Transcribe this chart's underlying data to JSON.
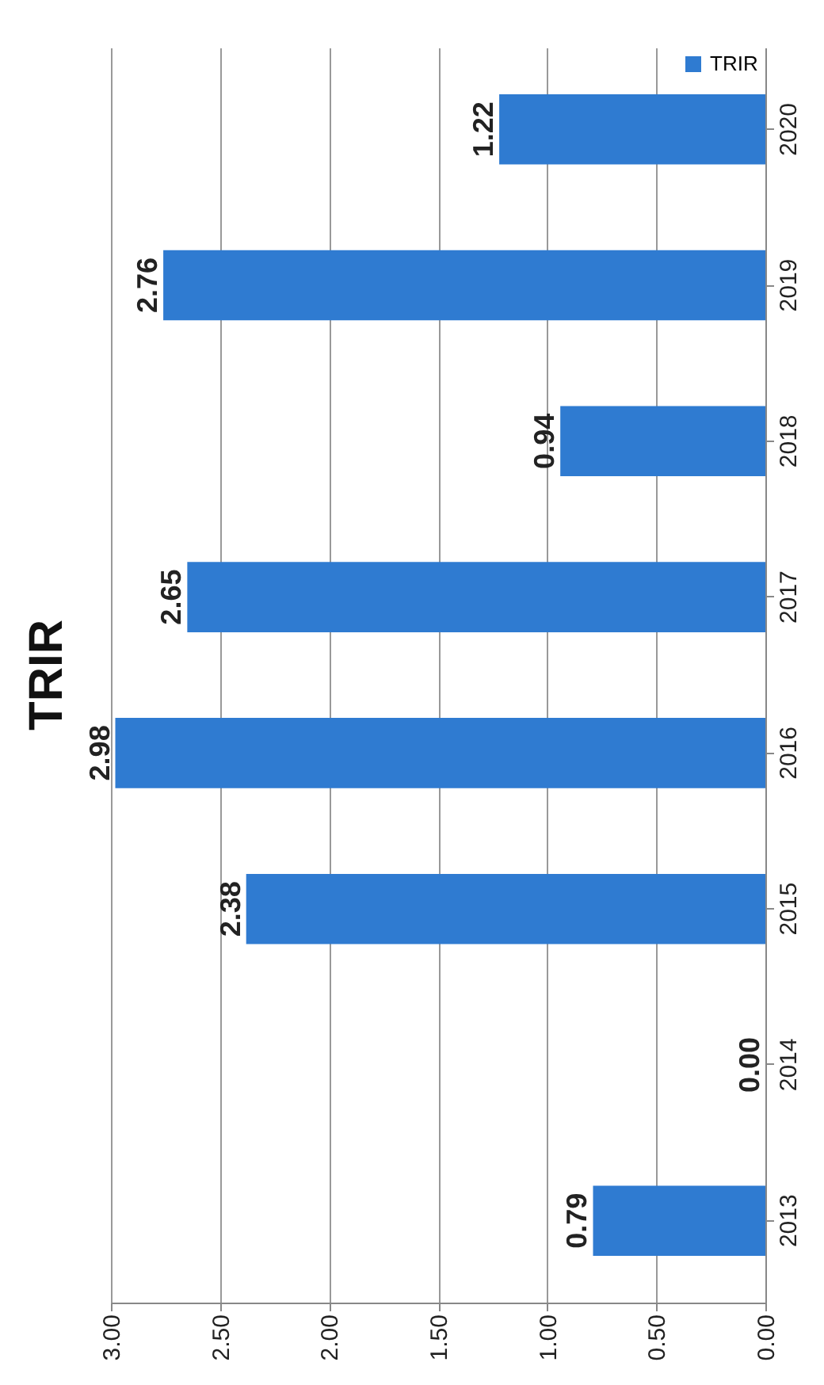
{
  "chart_data": {
    "type": "bar",
    "title": "TRIR",
    "orientation": "horizontal",
    "categories": [
      "2020",
      "2019",
      "2018",
      "2017",
      "2016",
      "2015",
      "2014",
      "2013"
    ],
    "series": [
      {
        "name": "TRIR",
        "color": "#2f7bd1",
        "values": [
          1.22,
          2.76,
          0.94,
          2.65,
          2.98,
          2.38,
          0,
          0.79
        ],
        "value_labels": [
          "1.22",
          "2.76",
          "0.94",
          "2.65",
          "2.98",
          "2.38",
          "0.00",
          "0.79"
        ]
      }
    ],
    "xlim": [
      3,
      0
    ],
    "xticks": [
      {
        "value": 3,
        "label": "3.00"
      },
      {
        "value": 2.5,
        "label": "2.50"
      },
      {
        "value": 2,
        "label": "2.00"
      },
      {
        "value": 1.5,
        "label": "1.50"
      },
      {
        "value": 1,
        "label": "1.00"
      },
      {
        "value": 0.5,
        "label": "0.50"
      },
      {
        "value": 0,
        "label": "0.00"
      }
    ],
    "grid": "x",
    "legend": "top right"
  }
}
